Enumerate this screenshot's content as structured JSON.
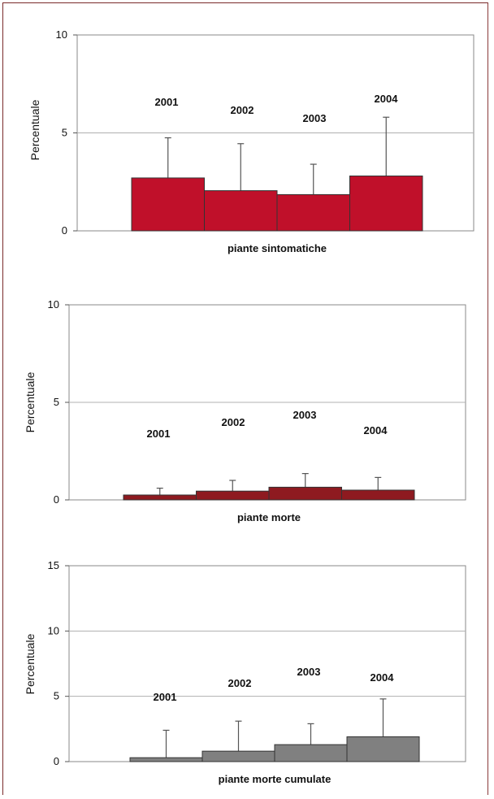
{
  "chart_data": [
    {
      "type": "bar",
      "categories": [
        "2001",
        "2002",
        "2003",
        "2004"
      ],
      "values": [
        2.7,
        2.05,
        1.85,
        2.8
      ],
      "error_upper": [
        4.75,
        4.45,
        3.4,
        5.8
      ],
      "xlabel": "piante sintomatiche",
      "ylabel": "Percentuale",
      "ylim": [
        0,
        10
      ],
      "yticks": [
        0,
        5,
        10
      ],
      "grid": true,
      "bar_color": "#c0102a"
    },
    {
      "type": "bar",
      "categories": [
        "2001",
        "2002",
        "2003",
        "2004"
      ],
      "values": [
        0.25,
        0.45,
        0.65,
        0.5
      ],
      "error_upper": [
        0.6,
        1.0,
        1.35,
        1.15
      ],
      "xlabel": "piante morte",
      "ylabel": "Percentuale",
      "ylim": [
        0,
        10
      ],
      "yticks": [
        0,
        5,
        10
      ],
      "grid": true,
      "bar_color": "#8e1a20"
    },
    {
      "type": "bar",
      "categories": [
        "2001",
        "2002",
        "2003",
        "2004"
      ],
      "values": [
        0.3,
        0.8,
        1.3,
        1.9
      ],
      "error_upper": [
        2.4,
        3.1,
        2.9,
        4.8
      ],
      "xlabel": "piante morte cumulate",
      "ylabel": "Percentuale",
      "ylim": [
        0,
        15
      ],
      "yticks": [
        0,
        5,
        10,
        15
      ],
      "grid": true,
      "bar_color": "#808080"
    }
  ]
}
